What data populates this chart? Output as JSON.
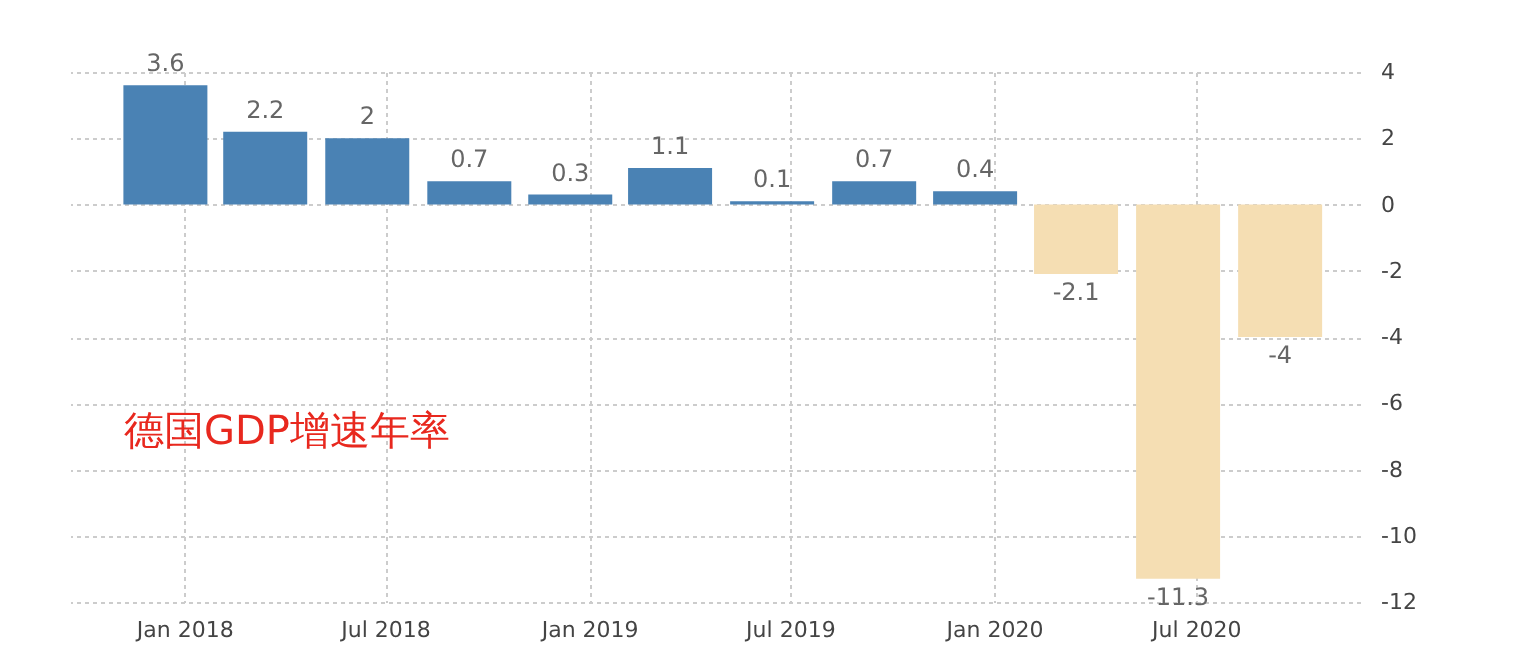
{
  "chart_data": {
    "type": "bar",
    "x": [
      "2017-12-15",
      "2018-03-15",
      "2018-06-15",
      "2018-09-15",
      "2018-12-15",
      "2019-03-15",
      "2019-06-15",
      "2019-09-15",
      "2019-12-15",
      "2020-03-15",
      "2020-06-15",
      "2020-09-15"
    ],
    "values": [
      3.6,
      2.2,
      2,
      0.7,
      0.3,
      1.1,
      0.1,
      0.7,
      0.4,
      -2.1,
      -11.3,
      -4
    ],
    "colors": [
      "#4a82b4",
      "#4a82b4",
      "#4a82b4",
      "#4a82b4",
      "#4a82b4",
      "#4a82b4",
      "#4a82b4",
      "#4a82b4",
      "#4a82b4",
      "#f5deb3",
      "#f5deb3",
      "#f5deb3"
    ],
    "data_labels": true,
    "xlim": [
      "2017-09-20",
      "2020-11-26"
    ],
    "xticks": [
      {
        "value": "2018-01-01",
        "label": "Jan 2018"
      },
      {
        "value": "2018-07-01",
        "label": "Jul 2018"
      },
      {
        "value": "2019-01-01",
        "label": "Jan 2019"
      },
      {
        "value": "2019-07-01",
        "label": "Jul 2019"
      },
      {
        "value": "2020-01-01",
        "label": "Jan 2020"
      },
      {
        "value": "2020-07-01",
        "label": "Jul 2020"
      }
    ],
    "ylim": [
      -12,
      4
    ],
    "yticks": [
      -12,
      -10,
      -8,
      -6,
      -4,
      -2,
      0,
      2,
      4
    ],
    "grid": true,
    "annotations": [
      "德国GDP增速年率"
    ]
  }
}
